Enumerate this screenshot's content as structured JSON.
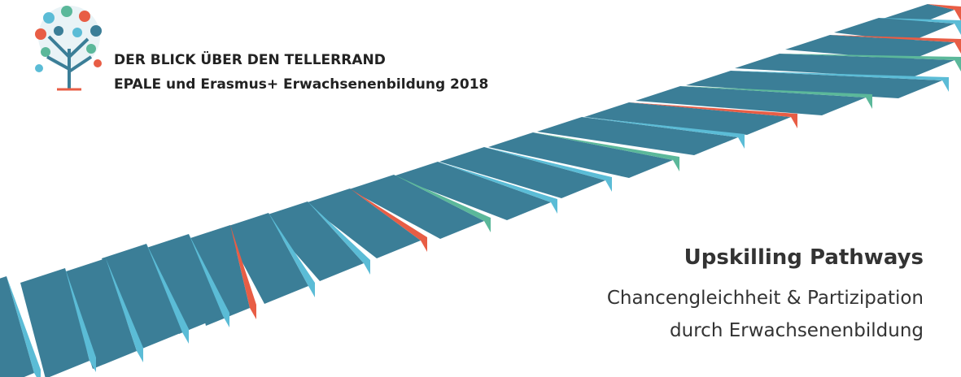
{
  "header": {
    "line1": "DER BLICK ÜBER DEN TELLERRAND",
    "line2": "EPALE und Erasmus+ Erwachsenenbildung 2018"
  },
  "title": "Upskilling Pathways",
  "subtitle": {
    "line1": "Chancengleichheit & Partizipation",
    "line2": "durch Erwachsenenbildung"
  }
}
